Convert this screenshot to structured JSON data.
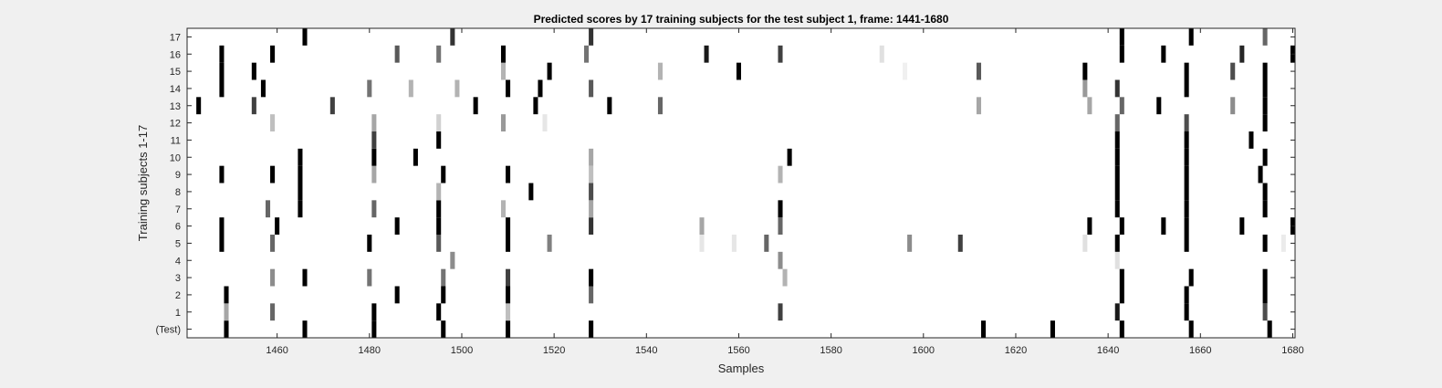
{
  "chart_data": {
    "type": "heatmap",
    "title": "Predicted scores by 17 training subjects for the test subject 1, frame: 1441-1680",
    "xlabel": "Samples",
    "ylabel": "Training subjects 1-17",
    "xlim": [
      1441,
      1680
    ],
    "x_ticks": [
      1460,
      1480,
      1500,
      1520,
      1540,
      1560,
      1580,
      1600,
      1620,
      1640,
      1660,
      1680
    ],
    "rows": [
      "(Test)",
      "1",
      "2",
      "3",
      "4",
      "5",
      "6",
      "7",
      "8",
      "9",
      "10",
      "11",
      "12",
      "13",
      "14",
      "15",
      "16",
      "17"
    ],
    "colormap": "score 0 = white, score 1 = black",
    "grid": false,
    "legend": "none",
    "events": [
      {
        "row": "(Test)",
        "marks": [
          [
            1449,
            1
          ],
          [
            1466,
            1
          ],
          [
            1481,
            1
          ],
          [
            1496,
            1
          ],
          [
            1510,
            1
          ],
          [
            1528,
            1
          ],
          [
            1613,
            1
          ],
          [
            1628,
            1
          ],
          [
            1643,
            1
          ],
          [
            1658,
            1
          ],
          [
            1675,
            1
          ]
        ]
      },
      {
        "row": "1",
        "marks": [
          [
            1449,
            0.35
          ],
          [
            1459,
            0.6
          ],
          [
            1481,
            1
          ],
          [
            1495,
            1
          ],
          [
            1510,
            0.25
          ],
          [
            1569,
            0.75
          ],
          [
            1642,
            0.9
          ],
          [
            1657,
            1
          ],
          [
            1674,
            0.7
          ]
        ]
      },
      {
        "row": "2",
        "marks": [
          [
            1449,
            1
          ],
          [
            1486,
            1
          ],
          [
            1496,
            1
          ],
          [
            1510,
            1
          ],
          [
            1528,
            0.6
          ],
          [
            1643,
            1
          ],
          [
            1657,
            1
          ],
          [
            1674,
            1
          ]
        ]
      },
      {
        "row": "3",
        "marks": [
          [
            1459,
            0.45
          ],
          [
            1466,
            1
          ],
          [
            1480,
            0.55
          ],
          [
            1496,
            0.55
          ],
          [
            1510,
            0.75
          ],
          [
            1528,
            1
          ],
          [
            1570,
            0.3
          ],
          [
            1643,
            1
          ],
          [
            1658,
            1
          ],
          [
            1674,
            1
          ]
        ]
      },
      {
        "row": "4",
        "marks": [
          [
            1498,
            0.45
          ],
          [
            1569,
            0.45
          ],
          [
            1642,
            0.12
          ]
        ]
      },
      {
        "row": "5",
        "marks": [
          [
            1448,
            1
          ],
          [
            1459,
            0.6
          ],
          [
            1480,
            1
          ],
          [
            1495,
            0.65
          ],
          [
            1510,
            1
          ],
          [
            1519,
            0.5
          ],
          [
            1552,
            0.1
          ],
          [
            1559,
            0.1
          ],
          [
            1566,
            0.6
          ],
          [
            1597,
            0.45
          ],
          [
            1608,
            0.75
          ],
          [
            1635,
            0.12
          ],
          [
            1642,
            1
          ],
          [
            1657,
            1
          ],
          [
            1674,
            1
          ],
          [
            1678,
            0.08
          ]
        ]
      },
      {
        "row": "6",
        "marks": [
          [
            1448,
            1
          ],
          [
            1460,
            1
          ],
          [
            1486,
            1
          ],
          [
            1495,
            1
          ],
          [
            1510,
            1
          ],
          [
            1528,
            0.8
          ],
          [
            1552,
            0.35
          ],
          [
            1569,
            0.6
          ],
          [
            1636,
            1
          ],
          [
            1643,
            1
          ],
          [
            1652,
            1
          ],
          [
            1657,
            1
          ],
          [
            1669,
            1
          ],
          [
            1680,
            1
          ]
        ]
      },
      {
        "row": "7",
        "marks": [
          [
            1458,
            0.6
          ],
          [
            1465,
            1
          ],
          [
            1481,
            0.6
          ],
          [
            1495,
            1
          ],
          [
            1509,
            0.3
          ],
          [
            1528,
            0.35
          ],
          [
            1569,
            1
          ],
          [
            1642,
            1
          ],
          [
            1657,
            1
          ],
          [
            1674,
            1
          ]
        ]
      },
      {
        "row": "8",
        "marks": [
          [
            1465,
            1
          ],
          [
            1495,
            0.3
          ],
          [
            1515,
            1
          ],
          [
            1528,
            0.7
          ],
          [
            1642,
            1
          ],
          [
            1657,
            1
          ],
          [
            1674,
            1
          ]
        ]
      },
      {
        "row": "9",
        "marks": [
          [
            1448,
            1
          ],
          [
            1459,
            1
          ],
          [
            1465,
            1
          ],
          [
            1481,
            0.35
          ],
          [
            1496,
            1
          ],
          [
            1510,
            1
          ],
          [
            1528,
            0.25
          ],
          [
            1569,
            0.3
          ],
          [
            1642,
            1
          ],
          [
            1657,
            1
          ],
          [
            1673,
            1
          ]
        ]
      },
      {
        "row": "10",
        "marks": [
          [
            1465,
            1
          ],
          [
            1481,
            1
          ],
          [
            1490,
            1
          ],
          [
            1528,
            0.35
          ],
          [
            1571,
            1
          ],
          [
            1642,
            1
          ],
          [
            1657,
            1
          ],
          [
            1674,
            1
          ]
        ]
      },
      {
        "row": "11",
        "marks": [
          [
            1481,
            0.75
          ],
          [
            1495,
            1
          ],
          [
            1642,
            1
          ],
          [
            1657,
            1
          ],
          [
            1671,
            1
          ]
        ]
      },
      {
        "row": "12",
        "marks": [
          [
            1459,
            0.25
          ],
          [
            1481,
            0.35
          ],
          [
            1495,
            0.18
          ],
          [
            1509,
            0.4
          ],
          [
            1518,
            0.1
          ],
          [
            1642,
            0.6
          ],
          [
            1657,
            0.7
          ],
          [
            1674,
            1
          ]
        ]
      },
      {
        "row": "13",
        "marks": [
          [
            1443,
            1
          ],
          [
            1455,
            0.75
          ],
          [
            1472,
            0.75
          ],
          [
            1503,
            1
          ],
          [
            1516,
            1
          ],
          [
            1532,
            1
          ],
          [
            1543,
            0.6
          ],
          [
            1612,
            0.35
          ],
          [
            1636,
            0.35
          ],
          [
            1643,
            0.6
          ],
          [
            1651,
            1
          ],
          [
            1667,
            0.45
          ],
          [
            1674,
            1
          ]
        ]
      },
      {
        "row": "14",
        "marks": [
          [
            1448,
            1
          ],
          [
            1457,
            1
          ],
          [
            1480,
            0.55
          ],
          [
            1489,
            0.3
          ],
          [
            1499,
            0.3
          ],
          [
            1510,
            1
          ],
          [
            1517,
            1
          ],
          [
            1528,
            0.65
          ],
          [
            1635,
            0.4
          ],
          [
            1642,
            0.8
          ],
          [
            1657,
            1
          ],
          [
            1674,
            1
          ]
        ]
      },
      {
        "row": "15",
        "marks": [
          [
            1448,
            1
          ],
          [
            1455,
            1
          ],
          [
            1509,
            0.3
          ],
          [
            1519,
            1
          ],
          [
            1543,
            0.3
          ],
          [
            1560,
            1
          ],
          [
            1596,
            0.06
          ],
          [
            1612,
            0.65
          ],
          [
            1635,
            1
          ],
          [
            1657,
            1
          ],
          [
            1667,
            0.7
          ],
          [
            1674,
            1
          ]
        ]
      },
      {
        "row": "16",
        "marks": [
          [
            1448,
            1
          ],
          [
            1459,
            1
          ],
          [
            1486,
            0.65
          ],
          [
            1495,
            0.55
          ],
          [
            1509,
            1
          ],
          [
            1527,
            0.55
          ],
          [
            1553,
            0.9
          ],
          [
            1569,
            0.75
          ],
          [
            1591,
            0.12
          ],
          [
            1643,
            1
          ],
          [
            1652,
            1
          ],
          [
            1669,
            0.85
          ],
          [
            1680,
            1
          ]
        ]
      },
      {
        "row": "17",
        "marks": [
          [
            1466,
            1
          ],
          [
            1498,
            0.8
          ],
          [
            1528,
            0.8
          ],
          [
            1643,
            1
          ],
          [
            1658,
            1
          ],
          [
            1674,
            0.6
          ]
        ]
      }
    ]
  }
}
